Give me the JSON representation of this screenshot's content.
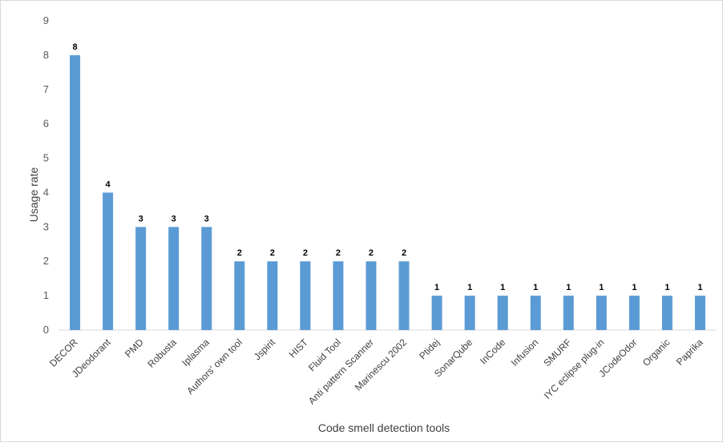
{
  "chart_data": {
    "type": "bar",
    "title": "",
    "xlabel": "Code smell detection tools",
    "ylabel": "Usage rate",
    "ylim": [
      0,
      9
    ],
    "y_ticks": [
      0,
      1,
      2,
      3,
      4,
      5,
      6,
      7,
      8,
      9
    ],
    "grid": false,
    "legend": "none",
    "bar_color": "#5b9bd5",
    "categories": [
      "DECOR",
      "JDeodorant",
      "PMD",
      "Robusta",
      "Iplasma",
      "Authors' own tool",
      "Jspirit",
      "HIST",
      "Fluid Tool",
      "Anti pattern Scanner",
      "Marinescu 2002",
      "Ptidej",
      "SonarQube",
      "InCode",
      "Infusion",
      "SMURF",
      "IYC eclipse plug-in",
      "JCodeOdor",
      "Organic",
      "Paprika"
    ],
    "values": [
      8,
      4,
      3,
      3,
      3,
      2,
      2,
      2,
      2,
      2,
      2,
      1,
      1,
      1,
      1,
      1,
      1,
      1,
      1,
      1
    ],
    "data_labels": [
      "8",
      "4",
      "3",
      "3",
      "3",
      "2",
      "2",
      "2",
      "2",
      "2",
      "2",
      "1",
      "1",
      "1",
      "1",
      "1",
      "1",
      "1",
      "1",
      "1"
    ]
  }
}
